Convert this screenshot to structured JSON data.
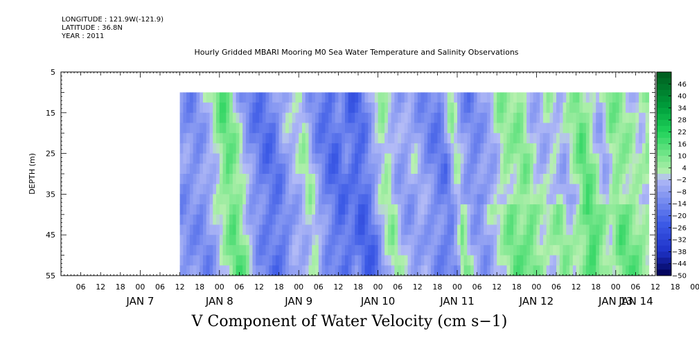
{
  "header": {
    "longitude": "LONGITUDE : 121.9W(-121.9)",
    "latitude": "LATITUDE : 36.8N",
    "year": "YEAR : 2011"
  },
  "chart_data": {
    "type": "heatmap",
    "title": "Hourly Gridded MBARI Mooring M0 Sea Water Temperature and Salinity Observations",
    "variable_title": "V Component of Water Velocity (cm s−1)",
    "ylabel": "DEPTH (m)",
    "ylim": [
      5,
      55
    ],
    "y_inverted": true,
    "y_ticks": [
      "5",
      "15",
      "25",
      "35",
      "45",
      "55"
    ],
    "data_depth_range": [
      10,
      55
    ],
    "xlim_hours": [
      -24,
      156
    ],
    "data_time_range_hours": [
      12,
      154
    ],
    "hour_ticks": [
      "06",
      "12",
      "18",
      "00",
      "06",
      "12",
      "18",
      "00",
      "06",
      "12",
      "18",
      "00",
      "06",
      "12",
      "18",
      "00",
      "06",
      "12",
      "18",
      "00",
      "06",
      "12",
      "18",
      "00",
      "06",
      "12",
      "18",
      "00",
      "06",
      "12",
      "18",
      "00"
    ],
    "day_labels": [
      "JAN  7",
      "JAN  8",
      "JAN  9",
      "JAN 10",
      "JAN 11",
      "JAN 12",
      "JAN 13",
      "JAN 14"
    ],
    "colorbar_levels": [
      "46",
      "40",
      "34",
      "28",
      "22",
      "16",
      "10",
      "4",
      "−2",
      "−8",
      "−14",
      "−20",
      "−26",
      "−32",
      "−38",
      "−44",
      "−50"
    ],
    "colorbar_range": [
      -50,
      52
    ],
    "colorbar_step": 3,
    "colors": {
      "green_strong": "#00b43c",
      "green_light": "#90ee90",
      "blue_light": "#aab4f5",
      "blue_mid": "#5a78e6",
      "blue_dark": "#000050"
    },
    "velocity_pattern": [
      {
        "hour": 12,
        "v": -10
      },
      {
        "hour": 15,
        "v": -12
      },
      {
        "hour": 18,
        "v": -6
      },
      {
        "hour": 21,
        "v": 2
      },
      {
        "hour": 24,
        "v": 14
      },
      {
        "hour": 27,
        "v": 6
      },
      {
        "hour": 30,
        "v": -8
      },
      {
        "hour": 33,
        "v": -14
      },
      {
        "hour": 36,
        "v": -18
      },
      {
        "hour": 39,
        "v": -16
      },
      {
        "hour": 42,
        "v": -6
      },
      {
        "hour": 45,
        "v": -4
      },
      {
        "hour": 48,
        "v": 4
      },
      {
        "hour": 51,
        "v": -10
      },
      {
        "hour": 54,
        "v": -16
      },
      {
        "hour": 57,
        "v": -20
      },
      {
        "hour": 60,
        "v": -14
      },
      {
        "hour": 63,
        "v": -22
      },
      {
        "hour": 66,
        "v": -18
      },
      {
        "hour": 69,
        "v": -4
      },
      {
        "hour": 72,
        "v": 6
      },
      {
        "hour": 75,
        "v": -6
      },
      {
        "hour": 78,
        "v": -8
      },
      {
        "hour": 81,
        "v": -4
      },
      {
        "hour": 84,
        "v": -10
      },
      {
        "hour": 87,
        "v": -14
      },
      {
        "hour": 90,
        "v": -16
      },
      {
        "hour": 93,
        "v": 4
      },
      {
        "hour": 96,
        "v": -10
      },
      {
        "hour": 99,
        "v": -14
      },
      {
        "hour": 102,
        "v": -8
      },
      {
        "hour": 105,
        "v": -4
      },
      {
        "hour": 108,
        "v": 6
      },
      {
        "hour": 111,
        "v": 4
      },
      {
        "hour": 114,
        "v": 8
      },
      {
        "hour": 117,
        "v": -2
      },
      {
        "hour": 120,
        "v": -4
      },
      {
        "hour": 123,
        "v": 2
      },
      {
        "hour": 126,
        "v": -6
      },
      {
        "hour": 129,
        "v": 2
      },
      {
        "hour": 132,
        "v": 14
      },
      {
        "hour": 135,
        "v": 4
      },
      {
        "hour": 138,
        "v": -6
      },
      {
        "hour": 141,
        "v": 8
      },
      {
        "hour": 144,
        "v": 6
      },
      {
        "hour": 147,
        "v": 2
      },
      {
        "hour": 150,
        "v": -2
      },
      {
        "hour": 153,
        "v": 10
      }
    ]
  }
}
